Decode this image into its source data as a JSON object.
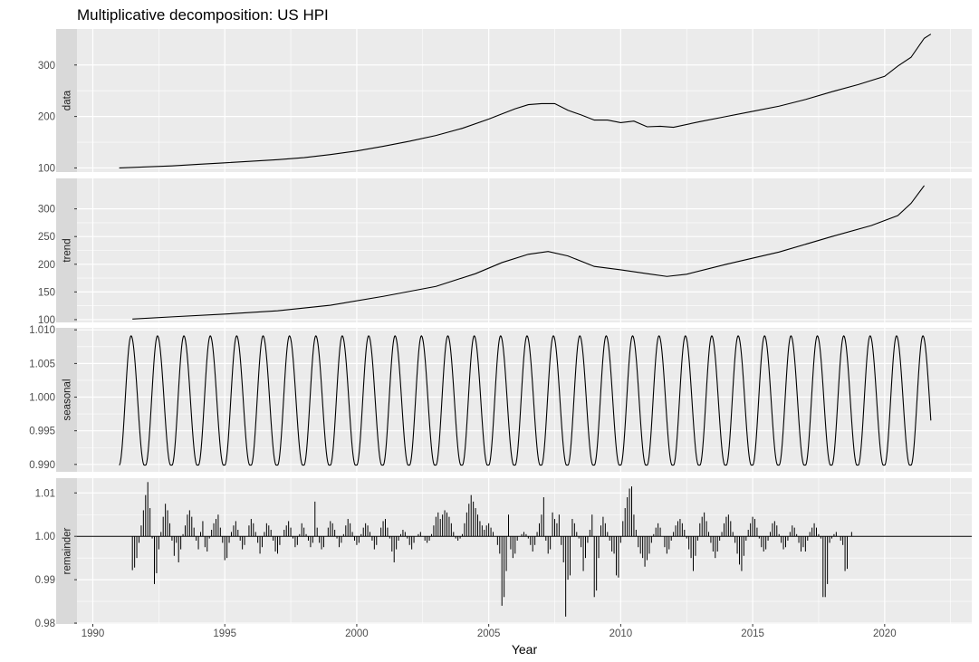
{
  "chart_data": {
    "type": "line",
    "title": "Multiplicative decomposition: US HPI",
    "xlabel": "Year",
    "x_ticks": [
      1990,
      1995,
      2000,
      2005,
      2010,
      2015,
      2020
    ],
    "xlim": [
      1989.4,
      2023.3
    ],
    "colors": {
      "panel_background": "#ebebeb",
      "strip_background": "#d9d9d9",
      "grid": "#ffffff",
      "line": "#000000",
      "tick_text": "#4d4d4d"
    },
    "panels": [
      {
        "name": "data",
        "ylim": [
          92,
          370
        ],
        "y_ticks": [
          100,
          200,
          300
        ],
        "y_tick_labels": [
          "100",
          "200",
          "300"
        ],
        "geom": "line",
        "x": [
          1991.0,
          1992.0,
          1993.0,
          1994.0,
          1995.0,
          1996.0,
          1997.0,
          1998.0,
          1999.0,
          2000.0,
          2001.0,
          2002.0,
          2003.0,
          2004.0,
          2005.0,
          2006.0,
          2006.5,
          2007.0,
          2007.5,
          2008.0,
          2008.5,
          2009.0,
          2009.5,
          2010.0,
          2010.5,
          2011.0,
          2011.5,
          2012.0,
          2013.0,
          2014.0,
          2015.0,
          2016.0,
          2017.0,
          2018.0,
          2019.0,
          2020.0,
          2020.5,
          2021.0,
          2021.5,
          2021.75
        ],
        "values": [
          100,
          102,
          104,
          107,
          110,
          113,
          116,
          120,
          126,
          133,
          142,
          152,
          163,
          177,
          195,
          215,
          223,
          225,
          225,
          212,
          203,
          193,
          193,
          188,
          191,
          180,
          181,
          179,
          190,
          200,
          210,
          220,
          233,
          248,
          262,
          278,
          298,
          315,
          352,
          360
        ]
      },
      {
        "name": "trend",
        "ylim": [
          95,
          355
        ],
        "y_ticks": [
          100,
          150,
          200,
          250,
          300
        ],
        "y_tick_labels": [
          "100",
          "150",
          "200",
          "250",
          "300"
        ],
        "geom": "line",
        "x": [
          1991.5,
          1993.0,
          1995.0,
          1997.0,
          1999.0,
          2001.0,
          2003.0,
          2004.5,
          2005.5,
          2006.5,
          2007.25,
          2008.0,
          2009.0,
          2010.0,
          2011.0,
          2011.75,
          2012.5,
          2014.0,
          2016.0,
          2018.0,
          2019.5,
          2020.5,
          2021.0,
          2021.5
        ],
        "values": [
          101,
          105,
          110,
          116,
          126,
          142,
          160,
          183,
          203,
          218,
          223,
          215,
          196,
          190,
          183,
          178,
          182,
          200,
          222,
          250,
          270,
          288,
          310,
          342
        ]
      },
      {
        "name": "seasonal",
        "ylim": [
          0.9889,
          1.0103
        ],
        "y_ticks": [
          0.99,
          0.995,
          1.0,
          1.005,
          1.01
        ],
        "y_tick_labels": [
          "0.990",
          "0.995",
          "1.000",
          "1.005",
          "1.010"
        ],
        "geom": "seasonal",
        "start": 1991.0,
        "end": 2021.75,
        "period": 1.0,
        "low": 0.9899,
        "high": 1.0091,
        "peak_offset": 0.45,
        "trough_offset": 0.95
      },
      {
        "name": "remainder",
        "ylim": [
          0.9798,
          1.0134
        ],
        "y_ticks": [
          0.98,
          0.99,
          1.0,
          1.01
        ],
        "y_tick_labels": [
          "0.98",
          "0.99",
          "1.00",
          "1.01"
        ],
        "geom": "bars",
        "baseline": 1.0,
        "start": 1991.5,
        "step": 0.08333,
        "values": [
          0.9922,
          0.9928,
          0.995,
          0.9985,
          1.0025,
          1.006,
          1.0095,
          1.0125,
          1.0065,
          0.9995,
          0.989,
          0.9915,
          0.997,
          1.001,
          1.0045,
          1.0075,
          1.006,
          1.003,
          0.999,
          0.9955,
          0.9985,
          0.994,
          0.997,
          1.0005,
          1.0025,
          1.005,
          1.006,
          1.0045,
          1.002,
          0.999,
          0.997,
          1.001,
          1.0035,
          0.9975,
          0.9965,
          0.9995,
          1.0015,
          1.003,
          1.004,
          1.005,
          1.002,
          0.9985,
          0.9945,
          0.995,
          0.9985,
          1.001,
          1.0025,
          1.0035,
          1.0015,
          0.999,
          0.997,
          0.998,
          1.0,
          1.0025,
          1.004,
          1.003,
          1.001,
          0.9985,
          0.996,
          0.9975,
          1.001,
          1.003,
          1.0025,
          1.0015,
          0.999,
          0.9965,
          0.996,
          0.998,
          1.0,
          1.0015,
          1.0025,
          1.0035,
          1.002,
          0.9995,
          0.9975,
          0.998,
          1.0005,
          1.003,
          1.002,
          1.0005,
          0.999,
          0.9975,
          0.9985,
          1.008,
          1.002,
          0.9985,
          0.997,
          0.9975,
          1.0,
          1.002,
          1.0035,
          1.003,
          1.0015,
          0.9995,
          0.9975,
          0.9985,
          1.0005,
          1.0025,
          1.004,
          1.003,
          1.001,
          0.999,
          0.998,
          0.9985,
          1.0005,
          1.002,
          1.003,
          1.0025,
          1.001,
          0.999,
          0.997,
          0.998,
          1.0,
          1.002,
          1.0035,
          1.004,
          1.002,
          0.9995,
          0.9965,
          0.994,
          0.997,
          0.999,
          1.0005,
          1.0015,
          1.001,
          0.9995,
          0.998,
          0.997,
          0.9985,
          1.0,
          1.0005,
          1.001,
          1.0,
          0.999,
          0.9985,
          0.999,
          1.0005,
          1.0025,
          1.0045,
          1.0055,
          1.004,
          1.005,
          1.006,
          1.0055,
          1.0045,
          1.003,
          1.001,
          0.9995,
          0.999,
          0.9995,
          1.0005,
          1.003,
          1.0055,
          1.0075,
          1.0095,
          1.008,
          1.0065,
          1.005,
          1.0035,
          1.0025,
          1.0015,
          1.0025,
          1.003,
          1.002,
          1.001,
          1.0,
          0.998,
          0.996,
          0.984,
          0.986,
          0.992,
          1.005,
          0.997,
          0.995,
          0.996,
          0.999,
          1.0,
          1.0005,
          1.001,
          1.0005,
          0.9995,
          0.998,
          0.9965,
          0.998,
          1.001,
          1.003,
          1.005,
          1.009,
          0.999,
          0.996,
          0.997,
          1.0055,
          1.004,
          1.003,
          1.005,
          0.998,
          0.994,
          0.9815,
          0.99,
          0.991,
          1.004,
          1.003,
          1.001,
          0.9995,
          0.9975,
          0.992,
          0.995,
          0.9985,
          1.0015,
          1.005,
          0.986,
          0.9875,
          0.995,
          1.0025,
          1.0045,
          1.003,
          1.001,
          0.999,
          0.9965,
          0.996,
          0.991,
          0.9905,
          0.9985,
          1.0035,
          1.0065,
          1.009,
          1.011,
          1.0115,
          1.005,
          1.0015,
          0.9975,
          0.996,
          0.995,
          0.993,
          0.9945,
          0.996,
          0.9985,
          1.0005,
          1.002,
          1.003,
          1.002,
          1.0,
          0.9975,
          0.996,
          0.997,
          0.999,
          1.001,
          1.0025,
          1.0035,
          1.004,
          1.003,
          1.0015,
          0.9995,
          0.997,
          0.995,
          0.992,
          0.9955,
          0.999,
          1.003,
          1.0045,
          1.0055,
          1.0035,
          1.001,
          0.9985,
          0.9965,
          0.995,
          0.9965,
          0.999,
          1.001,
          1.003,
          1.0045,
          1.005,
          1.0035,
          1.001,
          0.9985,
          0.996,
          0.9935,
          0.992,
          0.9955,
          0.999,
          1.0015,
          1.003,
          1.0045,
          1.004,
          1.002,
          0.9995,
          0.9975,
          0.9965,
          0.997,
          0.999,
          1.001,
          1.003,
          1.0035,
          1.0025,
          1.0005,
          0.9985,
          0.997,
          0.9975,
          0.999,
          1.001,
          1.0025,
          1.002,
          1.0005,
          0.9985,
          0.9965,
          0.9975,
          0.9965,
          0.999,
          1.001,
          1.002,
          1.003,
          1.002,
          1.0005,
          0.9995,
          0.986,
          0.986,
          0.989,
          0.9985,
          0.9995,
          1.0005,
          1.001,
          1.0,
          0.999,
          0.998,
          0.992,
          0.9925,
          1.0,
          1.001
        ]
      }
    ]
  }
}
